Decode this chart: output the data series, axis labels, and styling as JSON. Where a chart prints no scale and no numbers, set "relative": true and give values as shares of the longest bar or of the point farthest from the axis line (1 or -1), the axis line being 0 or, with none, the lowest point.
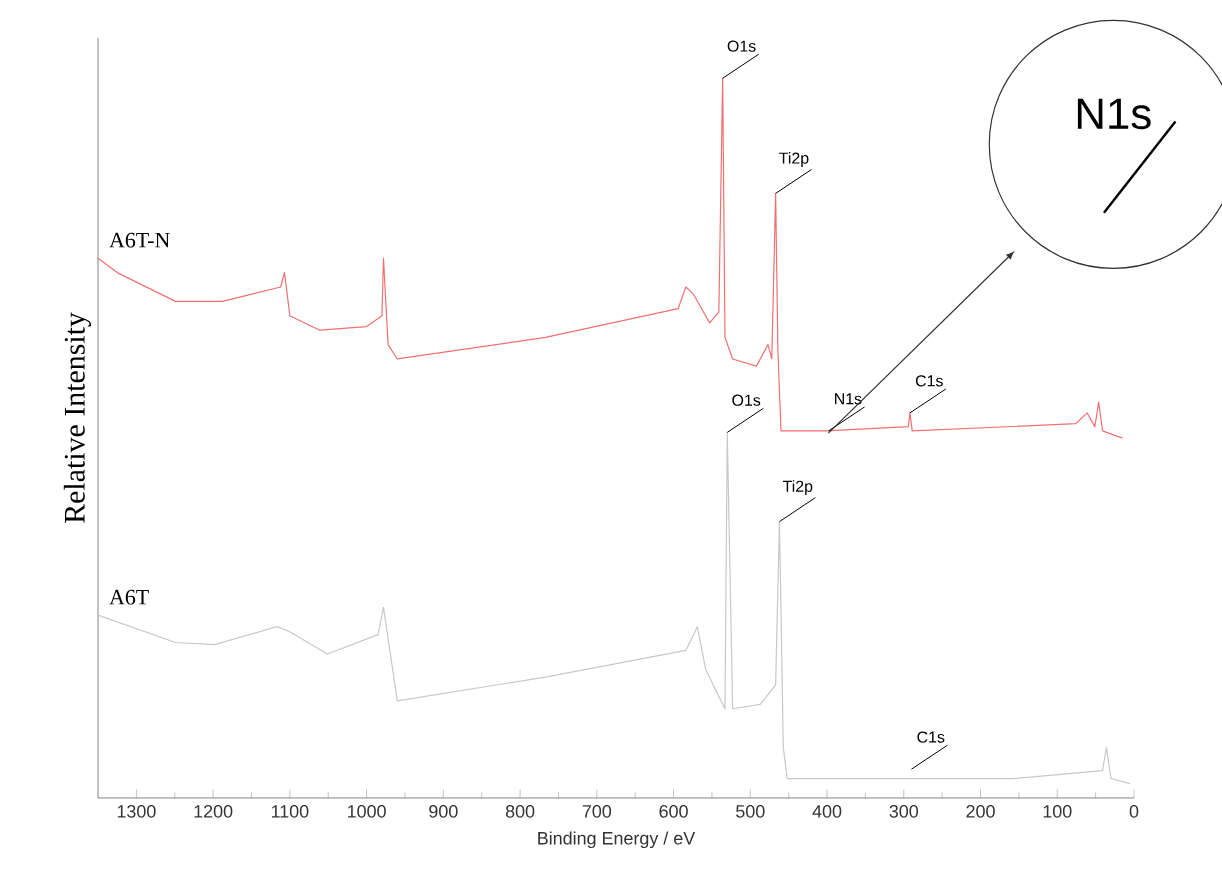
{
  "chart_data": {
    "type": "line",
    "relative": true,
    "xlabel": "Binding Energy / eV",
    "ylabel": "Relative Intensity",
    "xlim": [
      1350,
      0
    ],
    "xticks": [
      1300,
      1200,
      1100,
      1000,
      900,
      800,
      700,
      600,
      500,
      400,
      300,
      200,
      100,
      0
    ],
    "series": [
      {
        "name": "A6T-N",
        "color": "#f07070",
        "x": [
          1350,
          1325,
          1249,
          1188,
          1112,
          1107,
          1100,
          1061,
          1000,
          980,
          978,
          972,
          960,
          767,
          594,
          584,
          574,
          553,
          541,
          536,
          533,
          523,
          492,
          477,
          472,
          467,
          464,
          460,
          401,
          294,
          292,
          289,
          76,
          61,
          51,
          46,
          41,
          15
        ],
        "values": [
          0.75,
          0.73,
          0.69,
          0.69,
          0.71,
          0.73,
          0.67,
          0.65,
          0.655,
          0.67,
          0.75,
          0.63,
          0.61,
          0.64,
          0.68,
          0.71,
          0.7,
          0.66,
          0.675,
          1.0,
          0.64,
          0.61,
          0.6,
          0.63,
          0.61,
          0.84,
          0.62,
          0.51,
          0.51,
          0.516,
          0.535,
          0.51,
          0.52,
          0.535,
          0.516,
          0.55,
          0.51,
          0.5
        ]
      },
      {
        "name": "A6T",
        "color": "#c8c8c8",
        "x": [
          1350,
          1249,
          1198,
          1117,
          1102,
          1051,
          985,
          978,
          960,
          767,
          584,
          569,
          558,
          533,
          530,
          523,
          487,
          467,
          462,
          457,
          452,
          157,
          41,
          36,
          30,
          5
        ],
        "values": [
          0.254,
          0.216,
          0.213,
          0.238,
          0.232,
          0.2,
          0.227,
          0.265,
          0.135,
          0.168,
          0.205,
          0.238,
          0.178,
          0.124,
          0.508,
          0.124,
          0.13,
          0.157,
          0.384,
          0.07,
          0.027,
          0.027,
          0.038,
          0.07,
          0.027,
          0.02
        ]
      }
    ],
    "annotations": [
      {
        "text": "O1s",
        "x": 536,
        "y": 1.0
      },
      {
        "text": "Ti2p",
        "x": 467,
        "y": 0.84
      },
      {
        "text": "N1s",
        "x": 398,
        "y": 0.51
      },
      {
        "text": "C1s",
        "x": 292,
        "y": 0.535
      },
      {
        "text": "O1s",
        "x": 530,
        "y": 0.508
      },
      {
        "text": "Ti2p",
        "x": 462,
        "y": 0.384
      },
      {
        "text": "C1s",
        "x": 290,
        "y": 0.04
      },
      "N1s"
    ]
  }
}
